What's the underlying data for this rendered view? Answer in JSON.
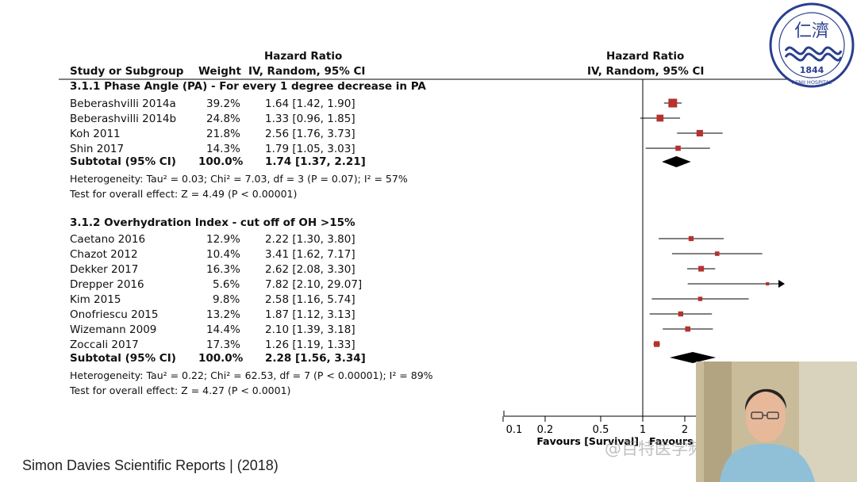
{
  "header": {
    "study_col": "Study or Subgroup",
    "weight_col": "Weight",
    "hr_title_left": "Hazard Ratio",
    "hr_sub_left": "IV, Random, 95% CI",
    "hr_title_right": "Hazard Ratio",
    "hr_sub_right": "IV, Random, 95% CI"
  },
  "chart_data": {
    "type": "forest",
    "scale": "log",
    "x_ticks": [
      0.1,
      0.2,
      0.5,
      1,
      2
    ],
    "x_tick_labels": [
      "0.1",
      "0.2",
      "0.5",
      "1",
      "2"
    ],
    "reference_line": 1,
    "favours_left": "Favours [Survival]",
    "favours_right": "Favours",
    "groups": [
      {
        "title": "3.1.1 Phase Angle (PA) - For every 1 degree decrease in PA",
        "studies": [
          {
            "name": "Beberashvilli 2014a",
            "weight": "39.2%",
            "ci_text": "1.64 [1.42, 1.90]",
            "hr": 1.64,
            "lo": 1.42,
            "hi": 1.9
          },
          {
            "name": "Beberashvilli 2014b",
            "weight": "24.8%",
            "ci_text": "1.33 [0.96, 1.85]",
            "hr": 1.33,
            "lo": 0.96,
            "hi": 1.85
          },
          {
            "name": "Koh 2011",
            "weight": "21.8%",
            "ci_text": "2.56 [1.76, 3.73]",
            "hr": 2.56,
            "lo": 1.76,
            "hi": 3.73
          },
          {
            "name": "Shin 2017",
            "weight": "14.3%",
            "ci_text": "1.79 [1.05, 3.03]",
            "hr": 1.79,
            "lo": 1.05,
            "hi": 3.03
          }
        ],
        "subtotal": {
          "label": "Subtotal (95% CI)",
          "weight": "100.0%",
          "ci_text": "1.74 [1.37, 2.21]",
          "hr": 1.74,
          "lo": 1.37,
          "hi": 2.21
        },
        "heterogeneity": "Heterogeneity: Tau² = 0.03; Chi² = 7.03, df = 3 (P = 0.07); I² = 57%",
        "overall": "Test for overall effect: Z = 4.49 (P < 0.00001)"
      },
      {
        "title": "3.1.2 Overhydration Index - cut off of OH >15%",
        "studies": [
          {
            "name": "Caetano 2016",
            "weight": "12.9%",
            "ci_text": "2.22 [1.30, 3.80]",
            "hr": 2.22,
            "lo": 1.3,
            "hi": 3.8
          },
          {
            "name": "Chazot 2012",
            "weight": "10.4%",
            "ci_text": "3.41 [1.62, 7.17]",
            "hr": 3.41,
            "lo": 1.62,
            "hi": 7.17
          },
          {
            "name": "Dekker 2017",
            "weight": "16.3%",
            "ci_text": "2.62 [2.08, 3.30]",
            "hr": 2.62,
            "lo": 2.08,
            "hi": 3.3
          },
          {
            "name": "Drepper 2016",
            "weight": "5.6%",
            "ci_text": "7.82 [2.10, 29.07]",
            "hr": 7.82,
            "lo": 2.1,
            "hi": 29.07
          },
          {
            "name": "Kim 2015",
            "weight": "9.8%",
            "ci_text": "2.58 [1.16, 5.74]",
            "hr": 2.58,
            "lo": 1.16,
            "hi": 5.74
          },
          {
            "name": "Onofriescu 2015",
            "weight": "13.2%",
            "ci_text": "1.87 [1.12, 3.13]",
            "hr": 1.87,
            "lo": 1.12,
            "hi": 3.13
          },
          {
            "name": "Wizemann 2009",
            "weight": "14.4%",
            "ci_text": "2.10 [1.39, 3.18]",
            "hr": 2.1,
            "lo": 1.39,
            "hi": 3.18
          },
          {
            "name": "Zoccali 2017",
            "weight": "17.3%",
            "ci_text": "1.26 [1.19, 1.33]",
            "hr": 1.26,
            "lo": 1.19,
            "hi": 1.33
          }
        ],
        "subtotal": {
          "label": "Subtotal (95% CI)",
          "weight": "100.0%",
          "ci_text": "2.28 [1.56, 3.34]",
          "hr": 2.28,
          "lo": 1.56,
          "hi": 3.34
        },
        "heterogeneity": "Heterogeneity: Tau² = 0.22; Chi² = 62.53, df = 7 (P < 0.00001); I² = 89%",
        "overall": "Test for overall effect: Z = 4.27 (P < 0.0001)"
      }
    ]
  },
  "citation": "Simon Davies Scientific Reports | (2018)",
  "logo": {
    "text": "仁濟",
    "year": "1844",
    "ring_text": "RENJI HOSPITAL",
    "colors": {
      "ink": "#2a3f8f"
    }
  },
  "watermark": "@百特医学频道",
  "colors": {
    "marker": "#b5322f",
    "diamond": "#000000",
    "line": "#000000"
  }
}
